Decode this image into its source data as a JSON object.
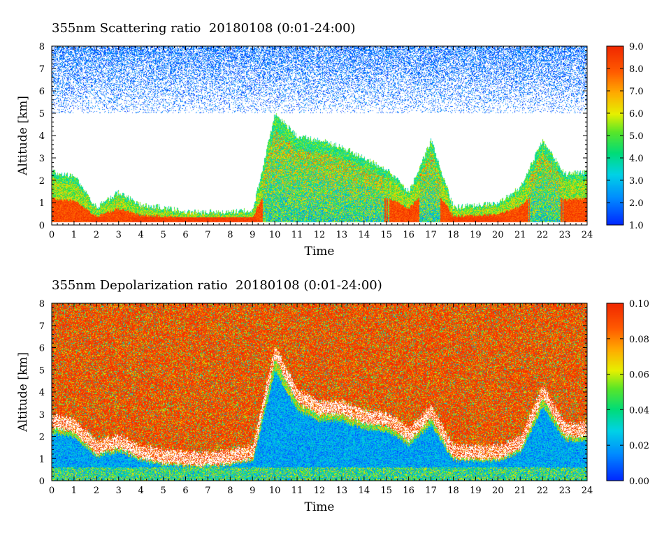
{
  "panels": [
    {
      "title": "355nm Scattering ratio  20180108 (0:01-24:00)",
      "xlabel": "Time",
      "ylabel": "Altitude [km]",
      "colorbar": {
        "min": 1.0,
        "max": 9.0,
        "labels": [
          "1.0",
          "2.0",
          "3.0",
          "4.0",
          "5.0",
          "6.0",
          "7.0",
          "8.0",
          "9.0"
        ]
      }
    },
    {
      "title": "355nm Depolarization ratio  20180108 (0:01-24:00)",
      "xlabel": "Time",
      "ylabel": "Altitude [km]",
      "colorbar": {
        "min": 0.0,
        "max": 0.1,
        "labels": [
          "0.00",
          "0.02",
          "0.04",
          "0.06",
          "0.08",
          "0.10"
        ]
      }
    }
  ],
  "chart_data": [
    {
      "type": "heatmap",
      "title": "355nm Scattering ratio  20180108 (0:01-24:00)",
      "xlabel": "Time",
      "ylabel": "Altitude [km]",
      "xlim": [
        0,
        24
      ],
      "ylim": [
        0,
        8
      ],
      "x_ticks": [
        "0",
        "1",
        "2",
        "3",
        "4",
        "5",
        "6",
        "7",
        "8",
        "9",
        "10",
        "11",
        "12",
        "13",
        "14",
        "15",
        "16",
        "17",
        "18",
        "19",
        "20",
        "21",
        "22",
        "23",
        "24"
      ],
      "y_ticks": [
        "0",
        "1",
        "2",
        "3",
        "4",
        "5",
        "6",
        "7",
        "8"
      ],
      "colorscale": "rainbow",
      "crange": [
        1.0,
        9.0
      ],
      "colorbar_labels": [
        "1.0",
        "2.0",
        "3.0",
        "4.0",
        "5.0",
        "6.0",
        "7.0",
        "8.0",
        "9.0"
      ],
      "cloud_top_km": [
        2.4,
        2.2,
        0.8,
        1.5,
        0.9,
        0.8,
        0.6,
        0.6,
        0.6,
        0.7,
        5.0,
        4.0,
        3.8,
        3.5,
        3.0,
        2.5,
        1.5,
        3.8,
        0.8,
        0.9,
        1.0,
        1.7,
        3.8,
        2.3,
        2.4
      ],
      "noise_band_km": [
        5.0,
        8.0
      ]
    },
    {
      "type": "heatmap",
      "title": "355nm Depolarization ratio  20180108 (0:01-24:00)",
      "xlabel": "Time",
      "ylabel": "Altitude [km]",
      "xlim": [
        0,
        24
      ],
      "ylim": [
        0,
        8
      ],
      "x_ticks": [
        "0",
        "1",
        "2",
        "3",
        "4",
        "5",
        "6",
        "7",
        "8",
        "9",
        "10",
        "11",
        "12",
        "13",
        "14",
        "15",
        "16",
        "17",
        "18",
        "19",
        "20",
        "21",
        "22",
        "23",
        "24"
      ],
      "y_ticks": [
        "0",
        "1",
        "2",
        "3",
        "4",
        "5",
        "6",
        "7",
        "8"
      ],
      "colorscale": "rainbow",
      "crange": [
        0.0,
        0.1
      ],
      "colorbar_labels": [
        "0.00",
        "0.02",
        "0.04",
        "0.06",
        "0.08",
        "0.10"
      ],
      "low_layer_top_km": [
        2.4,
        2.2,
        1.2,
        1.5,
        1.0,
        0.8,
        0.7,
        0.7,
        0.8,
        1.0,
        5.5,
        3.5,
        3.0,
        3.0,
        2.6,
        2.5,
        1.8,
        2.8,
        1.0,
        1.0,
        1.0,
        1.4,
        3.7,
        2.0,
        2.0
      ]
    }
  ]
}
